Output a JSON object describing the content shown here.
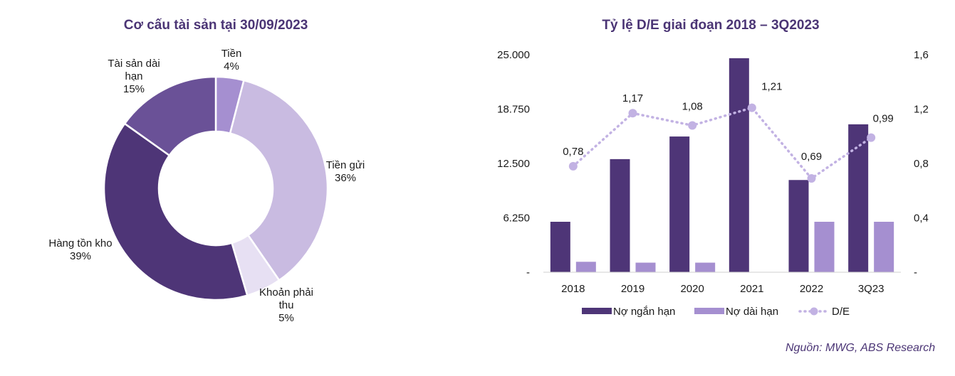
{
  "chart_data": [
    {
      "type": "pie",
      "title": "Cơ cấu tài sản tại 30/09/2023",
      "donut": true,
      "slices": [
        {
          "label_lines": [
            "Tiền",
            "4%"
          ],
          "value": 4,
          "color": "#a58fd0"
        },
        {
          "label_lines": [
            "Tiền gửi",
            "36%"
          ],
          "value": 36,
          "color": "#c9bbe1"
        },
        {
          "label_lines": [
            "Khoản phải",
            "thu",
            "5%"
          ],
          "value": 5,
          "color": "#e7e0f3"
        },
        {
          "label_lines": [
            "Hàng tồn kho",
            "39%"
          ],
          "value": 39,
          "color": "#4e3577"
        },
        {
          "label_lines": [
            "Tài sản dài",
            "hạn",
            "15%"
          ],
          "value": 15,
          "color": "#6a5197"
        }
      ]
    },
    {
      "type": "bar",
      "title": "Tỷ lệ D/E giai đoạn 2018 – 3Q2023",
      "categories": [
        "2018",
        "2019",
        "2020",
        "2021",
        "2022",
        "3Q23"
      ],
      "series": [
        {
          "name": "Nợ ngắn hạn",
          "kind": "bar",
          "axis": "left",
          "color": "#4e3577",
          "values": [
            5800,
            13000,
            15600,
            24600,
            10600,
            17000
          ]
        },
        {
          "name": "Nợ dài hạn",
          "kind": "bar",
          "axis": "left",
          "color": "#a58fd0",
          "values": [
            1200,
            1100,
            1100,
            0,
            5800,
            5800
          ]
        },
        {
          "name": "D/E",
          "kind": "line",
          "axis": "right",
          "style": "dotted",
          "color": "#c2b2e3",
          "values": [
            0.78,
            1.17,
            1.08,
            1.21,
            0.69,
            0.99
          ],
          "data_labels": [
            "0,78",
            "1,17",
            "1,08",
            "1,21",
            "0,69",
            "0,99"
          ]
        }
      ],
      "ylim_left": [
        0,
        25000
      ],
      "yticks_left": [
        "-",
        "6.250",
        "12.500",
        "18.750",
        "25.000"
      ],
      "ylim_right": [
        0,
        1.6
      ],
      "yticks_right": [
        "-",
        "0,4",
        "0,8",
        "1,2",
        "1,6"
      ],
      "legend_position": "bottom"
    }
  ],
  "source": "Nguồn: MWG, ABS Research"
}
